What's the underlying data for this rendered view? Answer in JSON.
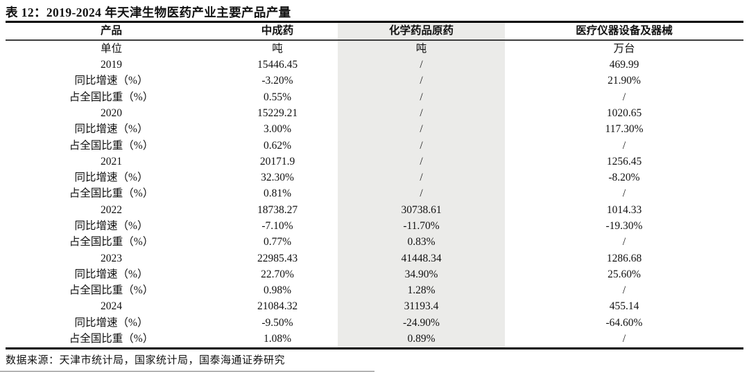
{
  "title": "表 12：2019-2024 年天津生物医药产业主要产品产量",
  "colors": {
    "highlight_column_bg": "#EBEBE9",
    "rule_color": "#000000",
    "text_color": "#111111"
  },
  "table": {
    "columns": [
      "产品",
      "中成药",
      "化学药品原药",
      "医疗仪器设备及器械"
    ],
    "highlighted_column": "化学药品原药",
    "rows": [
      [
        "单位",
        "吨",
        "吨",
        "万台"
      ],
      [
        "2019",
        "15446.45",
        "/",
        "469.99"
      ],
      [
        "同比增速（%）",
        "-3.20%",
        "/",
        "21.90%"
      ],
      [
        "占全国比重（%）",
        "0.55%",
        "/",
        "/"
      ],
      [
        "2020",
        "15229.21",
        "/",
        "1020.65"
      ],
      [
        "同比增速（%）",
        "3.00%",
        "/",
        "117.30%"
      ],
      [
        "占全国比重（%）",
        "0.62%",
        "/",
        "/"
      ],
      [
        "2021",
        "20171.9",
        "/",
        "1256.45"
      ],
      [
        "同比增速（%）",
        "32.30%",
        "/",
        "-8.20%"
      ],
      [
        "占全国比重（%）",
        "0.81%",
        "/",
        "/"
      ],
      [
        "2022",
        "18738.27",
        "30738.61",
        "1014.33"
      ],
      [
        "同比增速（%）",
        "-7.10%",
        "-11.70%",
        "-19.30%"
      ],
      [
        "占全国比重（%）",
        "0.77%",
        "0.83%",
        "/"
      ],
      [
        "2023",
        "22985.43",
        "41448.34",
        "1286.68"
      ],
      [
        "同比增速（%）",
        "22.70%",
        "34.90%",
        "25.60%"
      ],
      [
        "占全国比重（%）",
        "0.98%",
        "1.28%",
        "/"
      ],
      [
        "2024",
        "21084.32",
        "31193.4",
        "455.14"
      ],
      [
        "同比增速（%）",
        "-9.50%",
        "-24.90%",
        "-64.60%"
      ],
      [
        "占全国比重（%）",
        "1.08%",
        "0.89%",
        "/"
      ]
    ]
  },
  "footer": {
    "source": "数据来源：天津市统计局，国家统计局，国泰海通证券研究"
  }
}
